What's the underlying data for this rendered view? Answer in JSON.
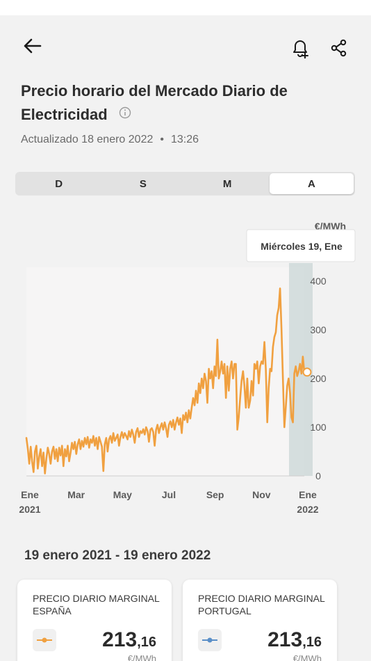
{
  "header": {
    "title": "Precio horario del Mercado Diario de Electricidad",
    "updated_label": "Actualizado 18 enero 2022",
    "updated_separator": "•",
    "updated_time": "13:26"
  },
  "icons": {
    "back": "arrow-left-icon",
    "bell": "bell-plus-icon",
    "share": "share-icon",
    "info": "info-icon"
  },
  "tabs": [
    {
      "label": "D",
      "active": false
    },
    {
      "label": "S",
      "active": false
    },
    {
      "label": "M",
      "active": false
    },
    {
      "label": "A",
      "active": true
    }
  ],
  "colors": {
    "espana": "#f0a040",
    "portugal": "#5a8fc8",
    "highlight_band": "#c9d6d6"
  },
  "chart_data": {
    "type": "line",
    "unit": "€/MWh",
    "ylim": [
      0,
      400
    ],
    "y_ticks": [
      "400",
      "300",
      "200",
      "100",
      "0"
    ],
    "x_ticks": [
      {
        "label": "Ene",
        "sublabel": "2021"
      },
      {
        "label": "Mar",
        "sublabel": ""
      },
      {
        "label": "May",
        "sublabel": ""
      },
      {
        "label": "Jul",
        "sublabel": ""
      },
      {
        "label": "Sep",
        "sublabel": ""
      },
      {
        "label": "Nov",
        "sublabel": ""
      },
      {
        "label": "Ene",
        "sublabel": "2022"
      }
    ],
    "tooltip": "Miércoles 19, Ene",
    "selected_value": 213.16,
    "series": [
      {
        "name": "PRECIO DIARIO MARGINAL ESPAÑA",
        "points": [
          [
            0,
            78
          ],
          [
            2,
            55
          ],
          [
            4,
            25
          ],
          [
            6,
            60
          ],
          [
            8,
            30
          ],
          [
            10,
            8
          ],
          [
            12,
            50
          ],
          [
            14,
            62
          ],
          [
            16,
            15
          ],
          [
            18,
            40
          ],
          [
            20,
            55
          ],
          [
            22,
            20
          ],
          [
            24,
            48
          ],
          [
            26,
            5
          ],
          [
            28,
            35
          ],
          [
            30,
            58
          ],
          [
            32,
            45
          ],
          [
            34,
            25
          ],
          [
            36,
            50
          ],
          [
            38,
            60
          ],
          [
            40,
            35
          ],
          [
            42,
            55
          ],
          [
            44,
            30
          ],
          [
            46,
            58
          ],
          [
            48,
            42
          ],
          [
            50,
            62
          ],
          [
            52,
            20
          ],
          [
            54,
            55
          ],
          [
            56,
            40
          ],
          [
            58,
            62
          ],
          [
            60,
            30
          ],
          [
            62,
            48
          ],
          [
            64,
            68
          ],
          [
            66,
            55
          ],
          [
            68,
            70
          ],
          [
            70,
            45
          ],
          [
            72,
            65
          ],
          [
            74,
            75
          ],
          [
            76,
            55
          ],
          [
            78,
            72
          ],
          [
            80,
            60
          ],
          [
            82,
            78
          ],
          [
            84,
            65
          ],
          [
            86,
            80
          ],
          [
            88,
            58
          ],
          [
            90,
            75
          ],
          [
            92,
            68
          ],
          [
            94,
            82
          ],
          [
            96,
            62
          ],
          [
            98,
            78
          ],
          [
            100,
            55
          ],
          [
            102,
            80
          ],
          [
            104,
            70
          ],
          [
            106,
            60
          ],
          [
            108,
            10
          ],
          [
            110,
            65
          ],
          [
            112,
            78
          ],
          [
            114,
            50
          ],
          [
            116,
            75
          ],
          [
            118,
            82
          ],
          [
            120,
            68
          ],
          [
            122,
            88
          ],
          [
            124,
            72
          ],
          [
            126,
            78
          ],
          [
            128,
            85
          ],
          [
            130,
            62
          ],
          [
            132,
            80
          ],
          [
            134,
            90
          ],
          [
            136,
            78
          ],
          [
            138,
            88
          ],
          [
            140,
            82
          ],
          [
            142,
            75
          ],
          [
            144,
            92
          ],
          [
            146,
            80
          ],
          [
            148,
            95
          ],
          [
            150,
            85
          ],
          [
            152,
            68
          ],
          [
            154,
            90
          ],
          [
            156,
            98
          ],
          [
            158,
            80
          ],
          [
            160,
            92
          ],
          [
            162,
            88
          ],
          [
            164,
            96
          ],
          [
            166,
            85
          ],
          [
            168,
            100
          ],
          [
            170,
            92
          ],
          [
            172,
            70
          ],
          [
            174,
            95
          ],
          [
            176,
            98
          ],
          [
            178,
            90
          ],
          [
            180,
            62
          ],
          [
            182,
            95
          ],
          [
            184,
            105
          ],
          [
            186,
            88
          ],
          [
            188,
            100
          ],
          [
            190,
            108
          ],
          [
            192,
            95
          ],
          [
            194,
            110
          ],
          [
            196,
            98
          ],
          [
            198,
            80
          ],
          [
            200,
            105
          ],
          [
            202,
            112
          ],
          [
            204,
            100
          ],
          [
            206,
            115
          ],
          [
            208,
            95
          ],
          [
            210,
            110
          ],
          [
            212,
            120
          ],
          [
            214,
            105
          ],
          [
            216,
            118
          ],
          [
            218,
            88
          ],
          [
            220,
            125
          ],
          [
            222,
            115
          ],
          [
            224,
            130
          ],
          [
            226,
            110
          ],
          [
            228,
            135
          ],
          [
            230,
            118
          ],
          [
            232,
            140
          ],
          [
            234,
            160
          ],
          [
            236,
            145
          ],
          [
            238,
            175
          ],
          [
            240,
            150
          ],
          [
            242,
            190
          ],
          [
            244,
            170
          ],
          [
            246,
            200
          ],
          [
            248,
            180
          ],
          [
            250,
            210
          ],
          [
            252,
            195
          ],
          [
            254,
            150
          ],
          [
            256,
            220
          ],
          [
            258,
            200
          ],
          [
            260,
            215
          ],
          [
            262,
            180
          ],
          [
            264,
            225
          ],
          [
            266,
            205
          ],
          [
            268,
            280
          ],
          [
            270,
            200
          ],
          [
            272,
            215
          ],
          [
            274,
            235
          ],
          [
            276,
            210
          ],
          [
            278,
            230
          ],
          [
            280,
            160
          ],
          [
            282,
            225
          ],
          [
            284,
            175
          ],
          [
            286,
            220
          ],
          [
            288,
            235
          ],
          [
            290,
            200
          ],
          [
            292,
            230
          ],
          [
            294,
            230
          ],
          [
            296,
            95
          ],
          [
            298,
            120
          ],
          [
            300,
            160
          ],
          [
            302,
            195
          ],
          [
            304,
            215
          ],
          [
            306,
            185
          ],
          [
            308,
            140
          ],
          [
            310,
            200
          ],
          [
            312,
            140
          ],
          [
            314,
            155
          ],
          [
            316,
            195
          ],
          [
            318,
            165
          ],
          [
            320,
            230
          ],
          [
            322,
            220
          ],
          [
            324,
            235
          ],
          [
            326,
            190
          ],
          [
            328,
            225
          ],
          [
            330,
            235
          ],
          [
            332,
            230
          ],
          [
            334,
            275
          ],
          [
            336,
            220
          ],
          [
            338,
            110
          ],
          [
            340,
            180
          ],
          [
            342,
            220
          ],
          [
            344,
            215
          ],
          [
            346,
            265
          ],
          [
            348,
            285
          ],
          [
            350,
            295
          ],
          [
            352,
            330
          ],
          [
            354,
            345
          ],
          [
            356,
            385
          ],
          [
            358,
            300
          ],
          [
            360,
            200
          ],
          [
            362,
            100
          ],
          [
            364,
            140
          ],
          [
            366,
            185
          ],
          [
            368,
            200
          ],
          [
            370,
            170
          ],
          [
            372,
            120
          ],
          [
            374,
            110
          ],
          [
            376,
            210
          ],
          [
            378,
            225
          ],
          [
            380,
            205
          ],
          [
            382,
            215
          ],
          [
            384,
            230
          ],
          [
            386,
            210
          ],
          [
            388,
            245
          ],
          [
            390,
            213
          ]
        ]
      }
    ]
  },
  "date_range": "19 enero 2021 - 19 enero 2022",
  "cards": [
    {
      "title": "PRECIO DIARIO MARGINAL ESPAÑA",
      "value_int": "213",
      "value_dec": ",16",
      "unit": "€/MWh"
    },
    {
      "title": "PRECIO DIARIO MARGINAL PORTUGAL",
      "value_int": "213",
      "value_dec": ",16",
      "unit": "€/MWh"
    }
  ]
}
